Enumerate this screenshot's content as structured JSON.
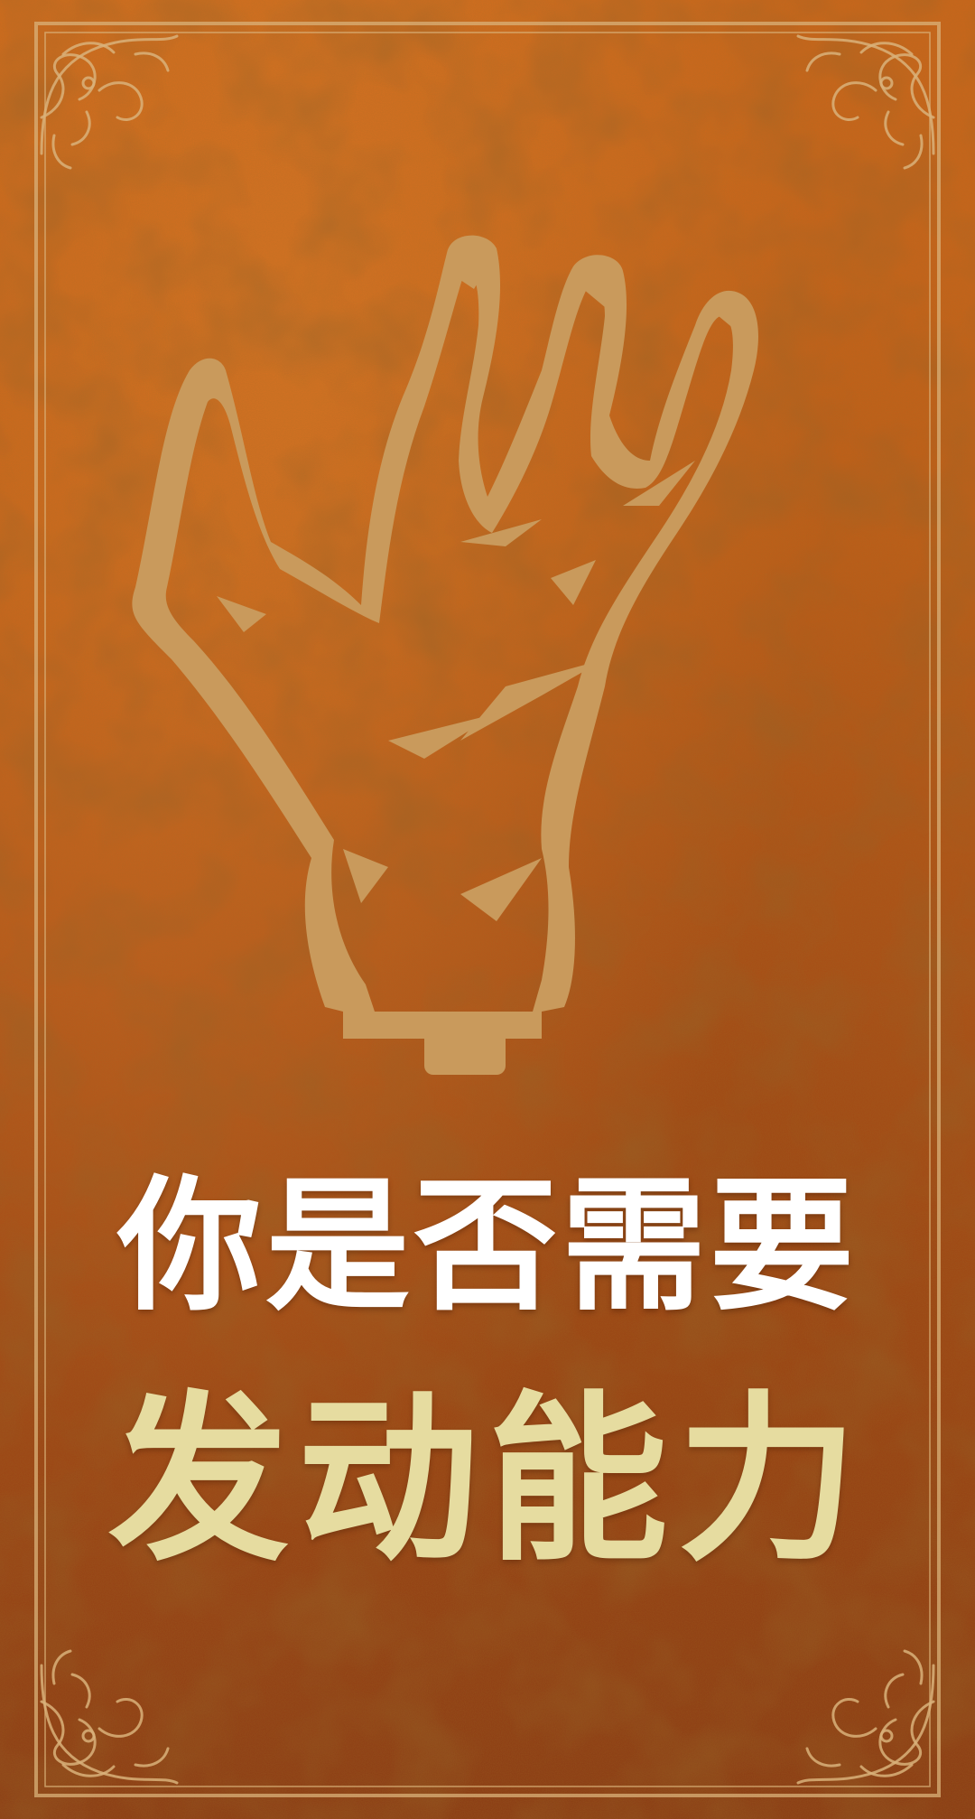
{
  "card": {
    "icon": "clawed-hand-icon",
    "title_line1": "你是否需要",
    "title_line2": "发动能力"
  },
  "colors": {
    "background_top": "#c8661b",
    "background_bottom": "#8c3f16",
    "ornament": "#d9b27a",
    "hand": "#c99a5c",
    "title_line1": "#ffffff",
    "title_line2": "#e6dca0"
  }
}
